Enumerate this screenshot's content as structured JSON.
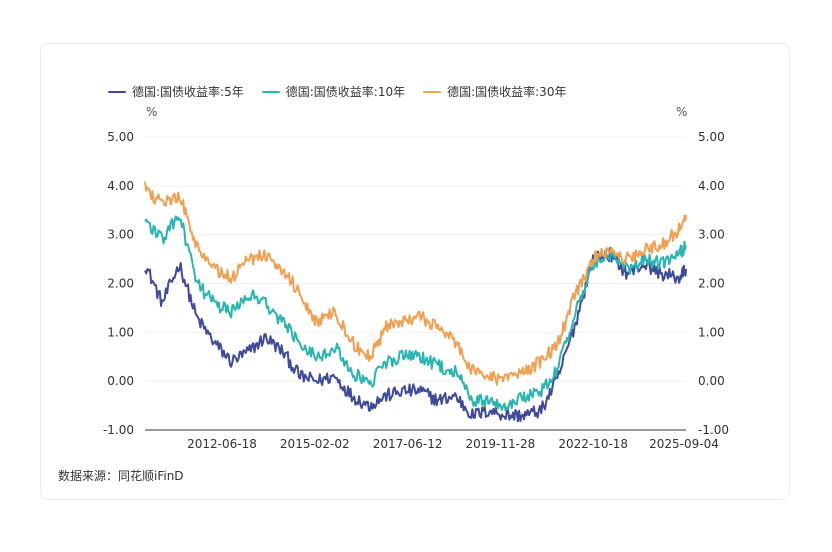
{
  "chart_data": {
    "type": "line",
    "left_unit": "%",
    "right_unit": "%",
    "ylim": [
      -1.0,
      5.0
    ],
    "yticks": [
      "5.00",
      "4.00",
      "3.00",
      "2.00",
      "1.00",
      "0.00",
      "-1.00"
    ],
    "y_right_ticks": [
      "5.00",
      "4.00",
      "3.00",
      "2.00",
      "1.00",
      "0.00",
      "-1.00"
    ],
    "x_tick_labels": [
      "2012-06-18",
      "2015-02-02",
      "2017-06-12",
      "2019-11-28",
      "2022-10-18",
      "2025-09-04"
    ],
    "x": [
      2010.0,
      2010.5,
      2011.0,
      2011.5,
      2012.0,
      2012.5,
      2013.0,
      2013.5,
      2014.0,
      2014.5,
      2015.0,
      2015.5,
      2016.0,
      2016.5,
      2017.0,
      2017.5,
      2018.0,
      2018.5,
      2019.0,
      2019.5,
      2020.0,
      2020.5,
      2021.0,
      2021.5,
      2022.0,
      2022.5,
      2023.0,
      2023.5,
      2024.0,
      2024.5,
      2025.0,
      2025.5,
      2025.7
    ],
    "series": [
      {
        "name": "德国:国债收益率:5年",
        "color": "#3f4a9a",
        "values": [
          2.4,
          1.6,
          2.4,
          1.3,
          0.8,
          0.4,
          0.6,
          0.9,
          0.6,
          0.1,
          0.0,
          0.1,
          -0.3,
          -0.5,
          -0.3,
          -0.2,
          -0.2,
          -0.4,
          -0.3,
          -0.7,
          -0.6,
          -0.7,
          -0.7,
          -0.6,
          0.1,
          1.2,
          2.5,
          2.6,
          2.2,
          2.4,
          2.2,
          2.1,
          2.3
        ]
      },
      {
        "name": "德国:国债收益率:10年",
        "color": "#2ab5b0",
        "values": [
          3.3,
          2.9,
          3.4,
          2.0,
          1.6,
          1.4,
          1.8,
          1.6,
          1.2,
          0.8,
          0.5,
          0.7,
          0.2,
          -0.1,
          0.4,
          0.5,
          0.5,
          0.3,
          0.2,
          -0.4,
          -0.4,
          -0.5,
          -0.3,
          -0.2,
          0.3,
          1.4,
          2.4,
          2.6,
          2.3,
          2.5,
          2.4,
          2.6,
          2.75
        ]
      },
      {
        "name": "德国:国债收益率:30年",
        "color": "#f0a050",
        "values": [
          4.0,
          3.6,
          3.8,
          2.8,
          2.3,
          2.1,
          2.5,
          2.6,
          2.3,
          1.8,
          1.2,
          1.4,
          0.8,
          0.5,
          1.1,
          1.2,
          1.3,
          1.1,
          0.8,
          0.2,
          0.1,
          0.0,
          0.2,
          0.4,
          0.8,
          1.8,
          2.5,
          2.7,
          2.5,
          2.7,
          2.8,
          3.1,
          3.4
        ]
      }
    ],
    "grid": true,
    "legend_position": "top-left"
  },
  "source_text": "数据来源：同花顺iFinD"
}
